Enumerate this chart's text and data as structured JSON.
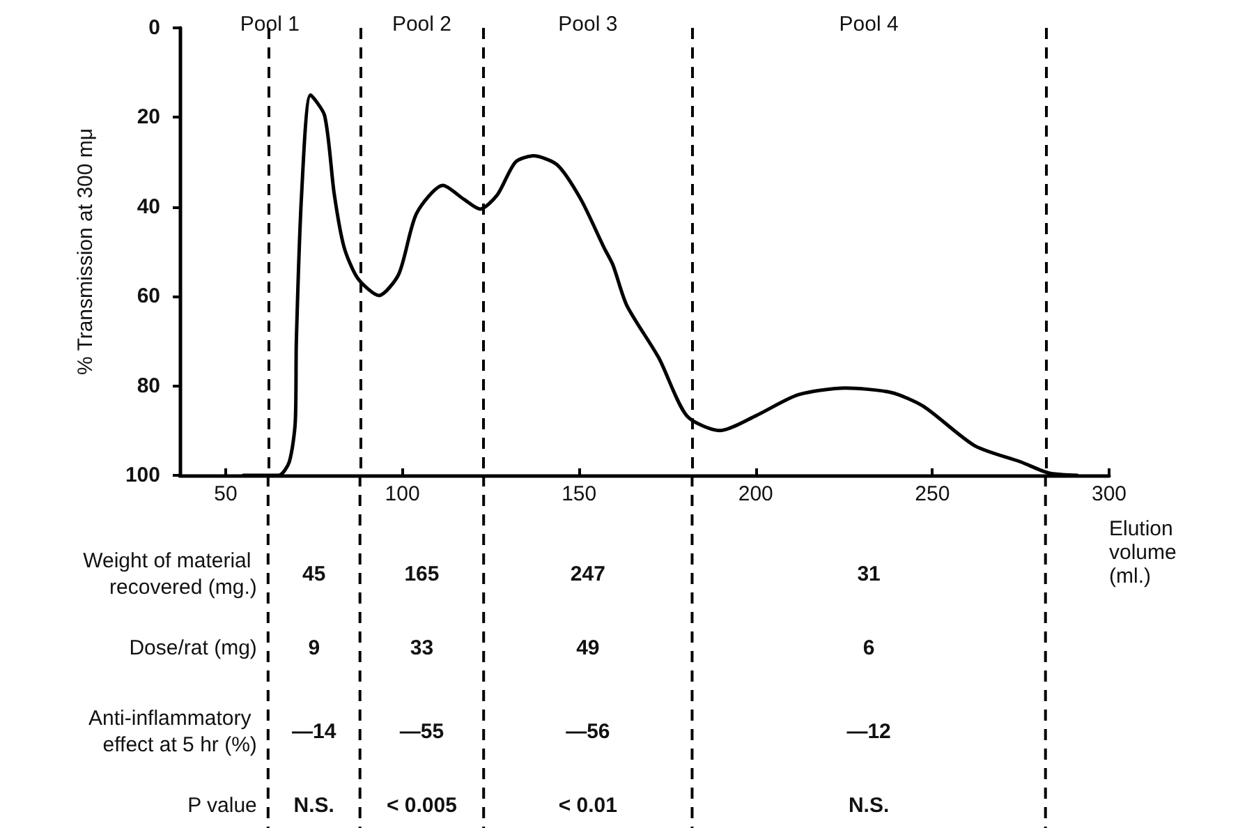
{
  "chart_data": {
    "type": "line",
    "ylabel": "% Transmission at 300 mμ",
    "xlabel": "Elution volume (ml.)",
    "x": [
      55,
      65,
      68,
      69.7,
      70,
      71.5,
      74,
      78,
      80.7,
      83.5,
      87.4,
      93.4,
      99,
      104,
      111.5,
      117.4,
      122,
      126.8,
      132,
      137,
      143.8,
      150.5,
      157,
      159.6,
      163.5,
      172.6,
      180.5,
      189.9,
      200,
      212,
      225.4,
      238.4,
      247.5,
      262,
      275,
      283,
      291
    ],
    "series": [
      {
        "color": "#000000",
        "values": [
          100,
          100,
          97,
          88,
          70,
          37,
          15,
          19.6,
          37,
          49,
          56,
          59.8,
          55,
          41.5,
          35.2,
          38.3,
          40.5,
          37.4,
          30,
          28.6,
          30.6,
          38.3,
          49,
          53,
          62,
          73.8,
          86.7,
          90,
          86.7,
          82,
          80.5,
          81.5,
          84.6,
          93.4,
          97,
          99.5,
          100
        ]
      }
    ],
    "xlim": [
      37,
      300
    ],
    "xticks": [
      50,
      100,
      150,
      200,
      250,
      300
    ],
    "ylim": [
      100,
      0
    ],
    "yticks": [
      0,
      20,
      40,
      60,
      80,
      100
    ],
    "grid": false,
    "marker": "none",
    "line_style": "solid",
    "ref_lines": [
      {
        "axis": "x",
        "value": 62,
        "line_style": "dashed",
        "color": "#000000"
      },
      {
        "axis": "x",
        "value": 88,
        "line_style": "dashed",
        "color": "#000000"
      },
      {
        "axis": "x",
        "value": 123,
        "line_style": "dashed",
        "color": "#000000"
      },
      {
        "axis": "x",
        "value": 182,
        "line_style": "dashed",
        "color": "#000000"
      },
      {
        "axis": "x",
        "value": 282,
        "line_style": "dashed",
        "color": "#000000"
      }
    ],
    "annotations": [
      "Pool 1",
      "Pool 2",
      "Pool 3",
      "Pool 4",
      "Weight of material recovered (mg.)",
      "45",
      "165",
      "247",
      "31",
      "Dose/rat (mg)",
      "9",
      "33",
      "49",
      "6",
      "Anti-inflammatory effect at 5 hr (%)",
      "—14",
      "—55",
      "—56",
      "—12",
      "P value",
      "N.S.",
      "< 0.005",
      "< 0.01",
      "N.S."
    ]
  }
}
